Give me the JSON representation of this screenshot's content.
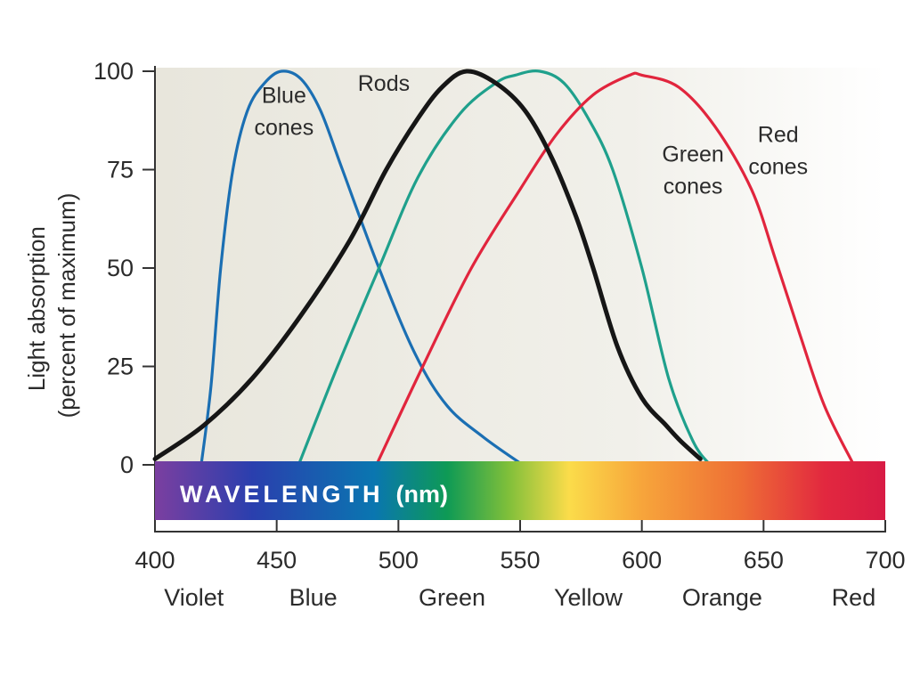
{
  "chart_data": {
    "type": "line",
    "ylabel_lines": [
      "Light absorption",
      "(percent of maximum)"
    ],
    "band_title_main": "WAVELENGTH",
    "band_title_unit": "(nm)",
    "xlim": [
      400,
      700
    ],
    "ylim": [
      0,
      100
    ],
    "x_ticks": [
      400,
      450,
      500,
      550,
      600,
      650,
      700
    ],
    "y_ticks": [
      0,
      25,
      50,
      75,
      100
    ],
    "x_tick_labels": [
      "400",
      "450",
      "500",
      "550",
      "600",
      "650",
      "700"
    ],
    "y_tick_labels": [
      "0",
      "25",
      "50",
      "75",
      "100"
    ],
    "color_labels": [
      {
        "text": "Violet",
        "x": 416
      },
      {
        "text": "Blue",
        "x": 465
      },
      {
        "text": "Green",
        "x": 522
      },
      {
        "text": "Yellow",
        "x": 578
      },
      {
        "text": "Orange",
        "x": 633
      },
      {
        "text": "Red",
        "x": 687
      }
    ],
    "spectrum_colors": [
      {
        "x": 400,
        "color": "#7b3fa0"
      },
      {
        "x": 440,
        "color": "#2a3fae"
      },
      {
        "x": 490,
        "color": "#0a76b0"
      },
      {
        "x": 520,
        "color": "#0e9a55"
      },
      {
        "x": 545,
        "color": "#7fbf3a"
      },
      {
        "x": 570,
        "color": "#fbdc4a"
      },
      {
        "x": 600,
        "color": "#f7a53b"
      },
      {
        "x": 640,
        "color": "#ee6f35"
      },
      {
        "x": 675,
        "color": "#e2283f"
      },
      {
        "x": 700,
        "color": "#d81b45"
      }
    ],
    "series": [
      {
        "name_lines": [
          "Blue",
          "cones"
        ],
        "color": "#1b6fb3",
        "label_x": 453,
        "label_y": 92,
        "points": [
          [
            419,
            0
          ],
          [
            423,
            20
          ],
          [
            427,
            50
          ],
          [
            432,
            75
          ],
          [
            438,
            90
          ],
          [
            445,
            97
          ],
          [
            452,
            100
          ],
          [
            460,
            98
          ],
          [
            468,
            90
          ],
          [
            477,
            75
          ],
          [
            492,
            50
          ],
          [
            507,
            28
          ],
          [
            520,
            15
          ],
          [
            535,
            7
          ],
          [
            551,
            0
          ]
        ]
      },
      {
        "name_lines": [
          "Rods"
        ],
        "color": "#161616",
        "label_x": 494,
        "label_y": 95,
        "points": [
          [
            400,
            1.5
          ],
          [
            420,
            10
          ],
          [
            440,
            22
          ],
          [
            460,
            38
          ],
          [
            480,
            57
          ],
          [
            495,
            75
          ],
          [
            508,
            88
          ],
          [
            518,
            96
          ],
          [
            528,
            100
          ],
          [
            540,
            97
          ],
          [
            552,
            90
          ],
          [
            563,
            78
          ],
          [
            573,
            63
          ],
          [
            580,
            50
          ],
          [
            590,
            30
          ],
          [
            600,
            17
          ],
          [
            610,
            10
          ],
          [
            616,
            6
          ],
          [
            624,
            1.5
          ]
        ]
      },
      {
        "name_lines": [
          "Green",
          "cones"
        ],
        "color": "#1fa08c",
        "label_x": 621,
        "label_y": 77,
        "points": [
          [
            459,
            0
          ],
          [
            475,
            25
          ],
          [
            492,
            50
          ],
          [
            508,
            73
          ],
          [
            525,
            89
          ],
          [
            540,
            97
          ],
          [
            548,
            99
          ],
          [
            558,
            100
          ],
          [
            568,
            97
          ],
          [
            578,
            88
          ],
          [
            588,
            75
          ],
          [
            600,
            50
          ],
          [
            611,
            22
          ],
          [
            621,
            6
          ],
          [
            628,
            0
          ]
        ]
      },
      {
        "name_lines": [
          "Red",
          "cones"
        ],
        "color": "#e1253d",
        "label_x": 656,
        "label_y": 82,
        "points": [
          [
            491,
            0
          ],
          [
            510,
            25
          ],
          [
            530,
            50
          ],
          [
            550,
            70
          ],
          [
            565,
            84
          ],
          [
            580,
            94
          ],
          [
            595,
            99
          ],
          [
            600,
            99
          ],
          [
            615,
            96
          ],
          [
            630,
            86
          ],
          [
            645,
            70
          ],
          [
            655,
            52
          ],
          [
            665,
            33
          ],
          [
            675,
            15
          ],
          [
            687,
            0
          ]
        ]
      }
    ]
  }
}
